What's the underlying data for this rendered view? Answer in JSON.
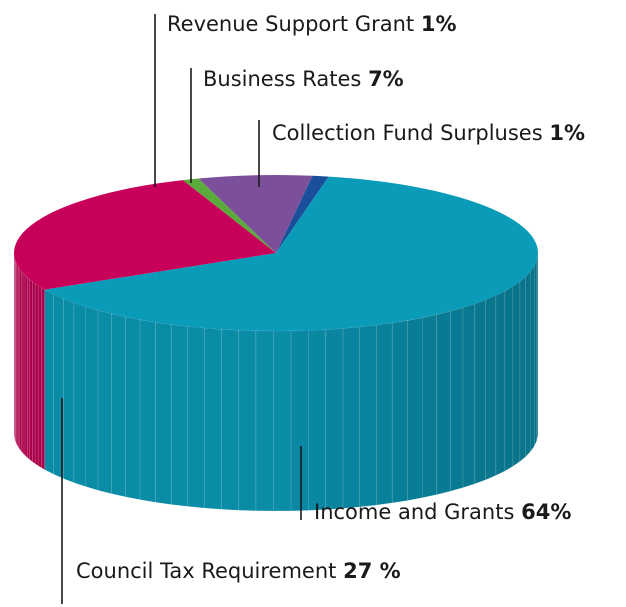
{
  "chart_data": {
    "type": "pie",
    "style": "3d",
    "title": "",
    "slices": [
      {
        "label": "Income and Grants",
        "value_label": "64%",
        "value": 64,
        "color": "#0a9bb9",
        "side_color": "#0a88a3"
      },
      {
        "label": "Council Tax Requirement",
        "value_label": "27 %",
        "value": 27,
        "color": "#c7005a",
        "side_color": "#a80049"
      },
      {
        "label": "Revenue Support Grant",
        "value_label": "1%",
        "value": 1,
        "color": "#5aaa3c",
        "side_color": "#4a9030"
      },
      {
        "label": "Business Rates",
        "value_label": "7%",
        "value": 7,
        "color": "#7b4f9a",
        "side_color": "#654082"
      },
      {
        "label": "Collection Fund Surpluses",
        "value_label": "1%",
        "value": 1,
        "color": "#1a4f9c",
        "side_color": "#153f7e"
      }
    ]
  }
}
